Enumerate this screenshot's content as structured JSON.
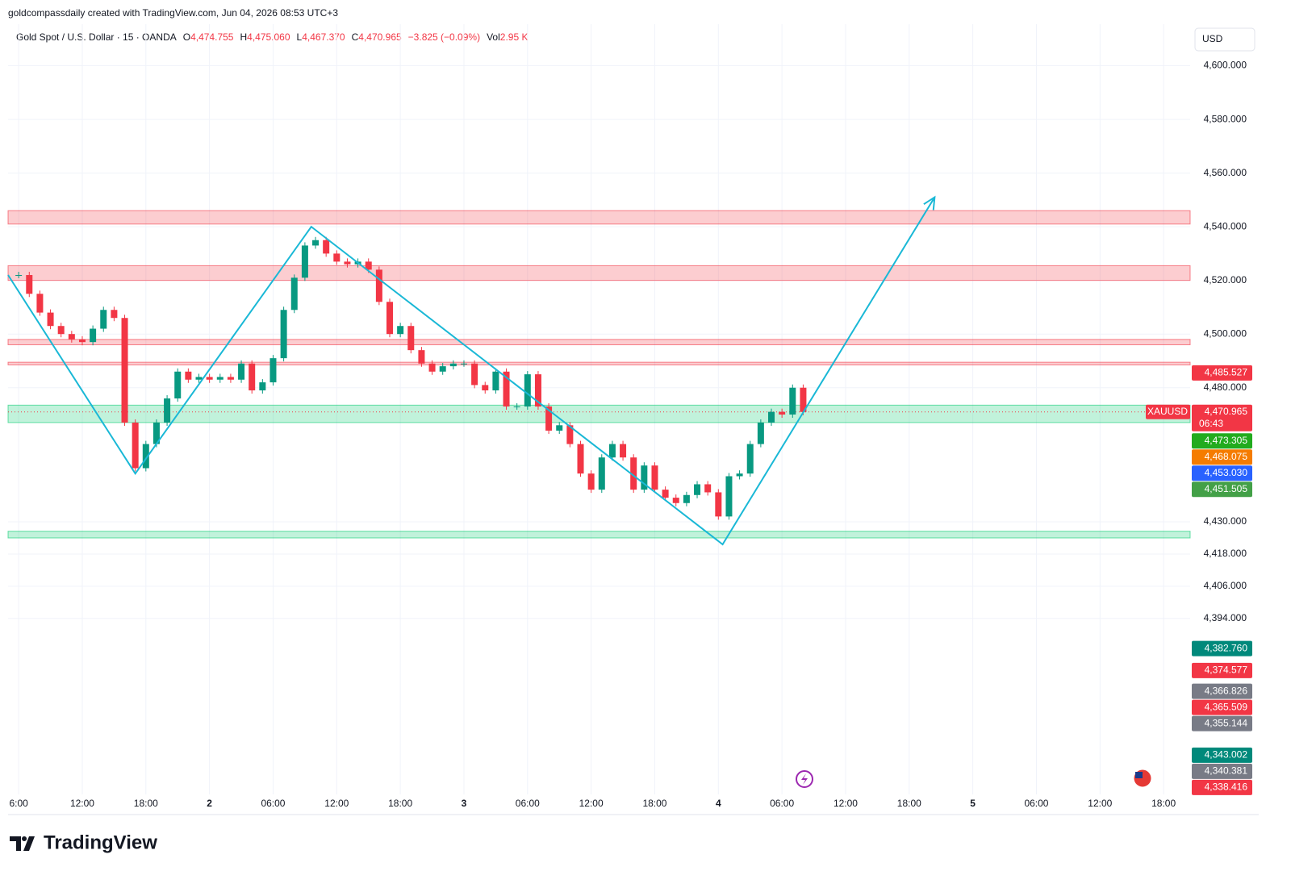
{
  "header": {
    "attribution": "goldcompassdaily created with TradingView.com, Jun 04, 2026 08:53 UTC+3",
    "symbol": "Gold Spot / U.S. Dollar · 15 · OANDA",
    "ohlc": [
      {
        "key": "O",
        "value": "4,474.755"
      },
      {
        "key": "H",
        "value": "4,475.060"
      },
      {
        "key": "L",
        "value": "4,467.370"
      },
      {
        "key": "C",
        "value": "4,470.965"
      }
    ],
    "change": "−3.825 (−0.09%)",
    "volume_key": "Vol",
    "volume": "2.95 K",
    "currency": "USD"
  },
  "footer": {
    "logo": "TradingView"
  },
  "chart_data": {
    "type": "candlestick",
    "series": [
      {
        "name": "XAUUSD",
        "up_color": "#089981",
        "down_color": "#f23645",
        "x": [
          0,
          1,
          2,
          3,
          4,
          5,
          6,
          7,
          8,
          9,
          10,
          11,
          12,
          13,
          14,
          15,
          16,
          17,
          18,
          19,
          20,
          21,
          22,
          23,
          24,
          25,
          26,
          27,
          28,
          29,
          30,
          31,
          32,
          33,
          34,
          35,
          36,
          37,
          38,
          39,
          40,
          41,
          42,
          43,
          44,
          45,
          46,
          47,
          48,
          49,
          50,
          51,
          52,
          53,
          54,
          55,
          56,
          57,
          58,
          59,
          60,
          61,
          62,
          63,
          64,
          65,
          66,
          67,
          68,
          69,
          70,
          71,
          72,
          73,
          74
        ],
        "values": [
          4522,
          4515,
          4508,
          4503,
          4500,
          4498,
          4497,
          4502,
          4509,
          4506,
          4467,
          4450,
          4459,
          4467,
          4476,
          4486,
          4483,
          4484,
          4483,
          4484,
          4483,
          4489,
          4479,
          4482,
          4491,
          4509,
          4521,
          4533,
          4535,
          4530,
          4527,
          4526,
          4527,
          4524,
          4512,
          4500,
          4503,
          4494,
          4489,
          4486,
          4488,
          4489,
          4489,
          4481,
          4479,
          4486,
          4473,
          4473,
          4485,
          4473,
          4464,
          4466,
          4459,
          4448,
          4442,
          4454,
          4459,
          4454,
          4442,
          4451,
          4442,
          4439,
          4437,
          4440,
          4444,
          4441,
          4432,
          4447,
          4448,
          4459,
          4467,
          4471,
          4470,
          4480,
          4470.965
        ]
      }
    ],
    "zones": [
      {
        "range": [
          4541,
          4546
        ],
        "color": "rgba(242,54,69,0.25)"
      },
      {
        "range": [
          4520,
          4525.5
        ],
        "color": "rgba(242,54,69,0.25)"
      },
      {
        "range": [
          4496,
          4498
        ],
        "color": "rgba(242,54,69,0.25)"
      },
      {
        "range": [
          4488.5,
          4489.5
        ],
        "color": "rgba(242,54,69,0.25)"
      },
      {
        "range": [
          4467,
          4473.5
        ],
        "color": "rgba(8,204,112,0.25)"
      },
      {
        "range": [
          4424,
          4426.5
        ],
        "color": "rgba(8,204,112,0.25)"
      }
    ],
    "drawing": {
      "color": "#1ab8d6",
      "x": [
        -1,
        11,
        27.6,
        66.4,
        86.4
      ],
      "y": [
        4522,
        4448,
        4540,
        4421.6,
        4551
      ]
    },
    "last_price": {
      "value": 4470.965,
      "label": "4,470.965",
      "symbol": "XAUUSD",
      "countdown": "06:43",
      "color": "#f23645"
    },
    "price_labels": [
      {
        "value": 4485.527,
        "label": "4,485.527",
        "color": "#f23645"
      },
      {
        "value": 4473.305,
        "label": "4,473.305",
        "color": "#22ab1e"
      },
      {
        "value": 4468.075,
        "label": "4,468.075",
        "color": "#f57c00"
      },
      {
        "value": 4453.03,
        "label": "4,453.030",
        "color": "#2962ff"
      },
      {
        "value": 4451.505,
        "label": "4,451.505",
        "color": "#43a047"
      },
      {
        "value": 4382.76,
        "label": "4,382.760",
        "color": "#00897b"
      },
      {
        "value": 4374.577,
        "label": "4,374.577",
        "color": "#f23645"
      },
      {
        "value": 4366.826,
        "label": "4,366.826",
        "color": "#787b86"
      },
      {
        "value": 4365.509,
        "label": "4,365.509",
        "color": "#f23645"
      },
      {
        "value": 4355.144,
        "label": "4,355.144",
        "color": "#787b86"
      },
      {
        "value": 4343.002,
        "label": "4,343.002",
        "color": "#00897b"
      },
      {
        "value": 4340.381,
        "label": "4,340.381",
        "color": "#787b86"
      },
      {
        "value": 4338.416,
        "label": "4,338.416",
        "color": "#f23645"
      }
    ],
    "xlim": [
      -1,
      110.5
    ],
    "xticks": [
      {
        "value": 0,
        "label": "6:00"
      },
      {
        "value": 6,
        "label": "12:00"
      },
      {
        "value": 12,
        "label": "18:00"
      },
      {
        "value": 18,
        "label": "2"
      },
      {
        "value": 24,
        "label": "06:00"
      },
      {
        "value": 30,
        "label": "12:00"
      },
      {
        "value": 36,
        "label": "18:00"
      },
      {
        "value": 42,
        "label": "3"
      },
      {
        "value": 48,
        "label": "06:00"
      },
      {
        "value": 54,
        "label": "12:00"
      },
      {
        "value": 60,
        "label": "18:00"
      },
      {
        "value": 66,
        "label": "4"
      },
      {
        "value": 72,
        "label": "06:00"
      },
      {
        "value": 78,
        "label": "12:00"
      },
      {
        "value": 84,
        "label": "18:00"
      },
      {
        "value": 90,
        "label": "5"
      },
      {
        "value": 96,
        "label": "06:00"
      },
      {
        "value": 102,
        "label": "12:00"
      },
      {
        "value": 108,
        "label": "18:00"
      }
    ],
    "ylim": [
      4328.4,
      4615.5
    ],
    "yticks": [
      {
        "value": 4600,
        "label": "4,600.000"
      },
      {
        "value": 4580,
        "label": "4,580.000"
      },
      {
        "value": 4560,
        "label": "4,560.000"
      },
      {
        "value": 4540,
        "label": "4,540.000"
      },
      {
        "value": 4520,
        "label": "4,520.000"
      },
      {
        "value": 4500,
        "label": "4,500.000"
      },
      {
        "value": 4480,
        "label": "4,480.000"
      },
      {
        "value": 4430,
        "label": "4,430.000"
      },
      {
        "value": 4418,
        "label": "4,418.000"
      },
      {
        "value": 4406,
        "label": "4,406.000"
      },
      {
        "value": 4394,
        "label": "4,394.000"
      }
    ],
    "grid": true
  }
}
